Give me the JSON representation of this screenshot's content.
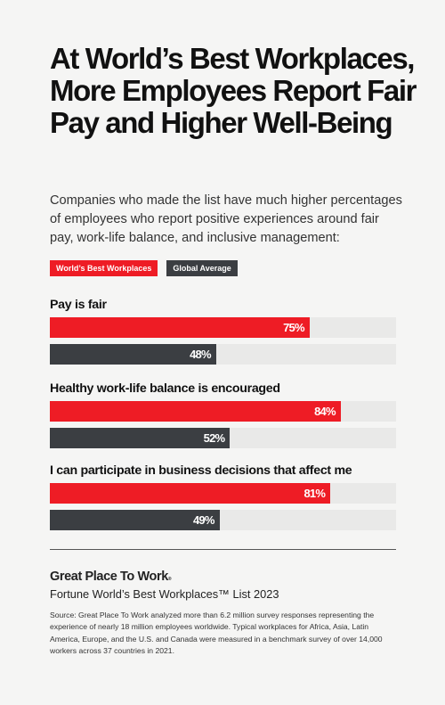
{
  "header": {
    "title": "At World’s Best Workplaces, More Employees Report Fair Pay and Higher Well-Being",
    "subtitle": "Companies who made the list have much higher percentages of employees who report positive experiences around fair pay, work-life balance, and inclusive management:"
  },
  "legend": {
    "items": [
      "World’s Best Workplaces",
      "Global Average"
    ]
  },
  "colors": {
    "best": "#ee1c25",
    "global": "#3b3e42",
    "track": "#e9e9e8"
  },
  "chart_data": {
    "type": "bar",
    "orientation": "horizontal",
    "categories": [
      "Pay is fair",
      "Healthy work-life balance is encouraged",
      "I can participate in business decisions that affect me"
    ],
    "series": [
      {
        "name": "World’s Best Workplaces",
        "values": [
          75,
          84,
          81
        ],
        "labels": [
          "75%",
          "84%",
          "81%"
        ]
      },
      {
        "name": "Global Average",
        "values": [
          48,
          52,
          49
        ],
        "labels": [
          "48%",
          "52%",
          "49%"
        ]
      }
    ],
    "xlim": [
      0,
      100
    ],
    "grid": false,
    "legend_position": "top-left"
  },
  "footer": {
    "brand": "Great Place To Work",
    "brand_mark": "®",
    "list_name": "Fortune World’s Best Workplaces™ List 2023",
    "source": "Source: Great Place To Work analyzed more than 6.2 million survey responses representing the experience of nearly 18 million employees worldwide. Typical workplaces for Africa, Asia, Latin America, Europe, and the U.S. and Canada were measured in a benchmark survey of over 14,000 workers across 37 countries in 2021."
  }
}
